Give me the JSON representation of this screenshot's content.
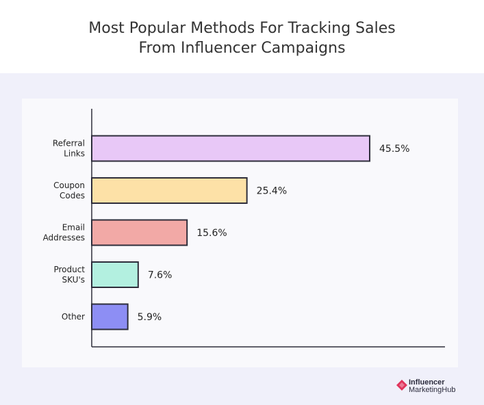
{
  "chart_data": {
    "type": "bar",
    "orientation": "horizontal",
    "title": "Most Popular Methods For Tracking Sales\nFrom Influencer Campaigns",
    "categories": [
      "Referral\nLinks",
      "Coupon\nCodes",
      "Email\nAddresses",
      "Product\nSKU's",
      "Other"
    ],
    "values": [
      45.5,
      25.4,
      15.6,
      7.6,
      5.9
    ],
    "value_labels": [
      "45.5%",
      "25.4%",
      "15.6%",
      "7.6%",
      "5.9%"
    ],
    "colors": [
      "#e8c8f7",
      "#fde1a7",
      "#f2a9a6",
      "#b3f0e0",
      "#8d8ef4"
    ],
    "xlim": [
      0,
      57.6
    ],
    "grid": false,
    "legend": "none"
  },
  "logo": {
    "line1": "Influencer",
    "line2": "MarketingHub",
    "mark_color": "#e0345c"
  }
}
